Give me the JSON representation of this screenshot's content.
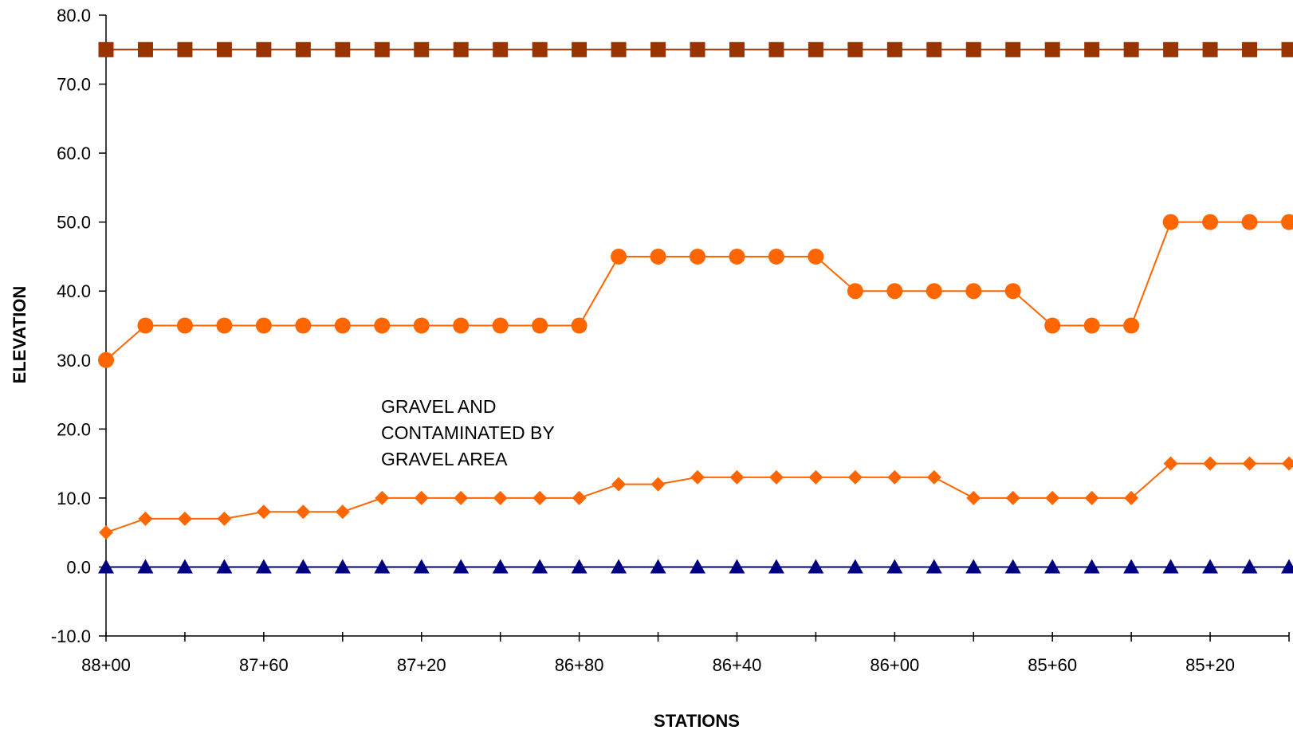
{
  "chart_data": {
    "type": "line",
    "xlabel": "STATIONS",
    "ylabel": "ELEVATION",
    "ylim": [
      -10,
      80
    ],
    "y_tick_labels": [
      "80.0",
      "70.0",
      "60.0",
      "50.0",
      "40.0",
      "30.0",
      "20.0",
      "10.0",
      "0.0",
      "-10.0"
    ],
    "x_tick_labels": [
      "88+00",
      "87+60",
      "87+20",
      "86+80",
      "86+40",
      "86+00",
      "85+60",
      "85+20"
    ],
    "x": [
      "88+00",
      "87+90",
      "87+80",
      "87+70",
      "87+60",
      "87+50",
      "87+40",
      "87+30",
      "87+20",
      "87+10",
      "87+00",
      "86+90",
      "86+80",
      "86+70",
      "86+60",
      "86+50",
      "86+40",
      "86+30",
      "86+20",
      "86+10",
      "86+00",
      "85+90",
      "85+80",
      "85+70",
      "85+60",
      "85+50",
      "85+40",
      "85+30",
      "85+20",
      "85+10",
      "85+00"
    ],
    "grid": false,
    "legend": "none",
    "annotation": [
      "GRAVEL AND",
      "CONTAMINATED BY",
      "GRAVEL AREA"
    ],
    "series": [
      {
        "marker": "square",
        "color": "#993300",
        "values": [
          75,
          75,
          75,
          75,
          75,
          75,
          75,
          75,
          75,
          75,
          75,
          75,
          75,
          75,
          75,
          75,
          75,
          75,
          75,
          75,
          75,
          75,
          75,
          75,
          75,
          75,
          75,
          75,
          75,
          75,
          75
        ]
      },
      {
        "marker": "circle",
        "color": "#ff6600",
        "values": [
          30,
          35,
          35,
          35,
          35,
          35,
          35,
          35,
          35,
          35,
          35,
          35,
          35,
          45,
          45,
          45,
          45,
          45,
          45,
          40,
          40,
          40,
          40,
          40,
          35,
          35,
          35,
          50,
          50,
          50,
          50
        ]
      },
      {
        "marker": "diamond",
        "color": "#ff6600",
        "values": [
          5,
          7,
          7,
          7,
          8,
          8,
          8,
          10,
          10,
          10,
          10,
          10,
          10,
          12,
          12,
          13,
          13,
          13,
          13,
          13,
          13,
          13,
          10,
          10,
          10,
          10,
          10,
          15,
          15,
          15,
          15
        ]
      },
      {
        "marker": "triangle",
        "color": "#000080",
        "values": [
          0,
          0,
          0,
          0,
          0,
          0,
          0,
          0,
          0,
          0,
          0,
          0,
          0,
          0,
          0,
          0,
          0,
          0,
          0,
          0,
          0,
          0,
          0,
          0,
          0,
          0,
          0,
          0,
          0,
          0,
          0
        ]
      }
    ]
  }
}
